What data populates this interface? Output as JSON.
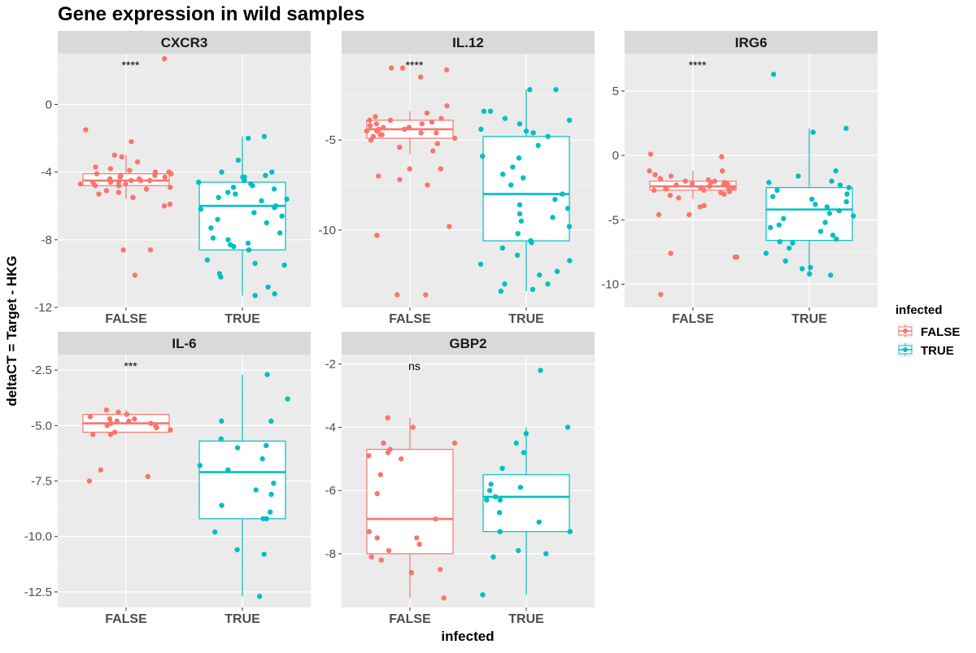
{
  "title": "Gene expression in wild samples",
  "xlabel": "infected",
  "ylabel": "deltaCT = Target - HKG",
  "legend": {
    "title": "infected",
    "position": "right",
    "entries": [
      {
        "label": "FALSE",
        "color": "#F8766D"
      },
      {
        "label": "TRUE",
        "color": "#00BFC4"
      }
    ]
  },
  "colors": {
    "FALSE": "#F8766D",
    "TRUE": "#00BFC4",
    "panel_bg": "#EBEBEB",
    "strip_bg": "#D9D9D9"
  },
  "chart_data": [
    {
      "type": "boxplot",
      "panel": "CXCR3",
      "categories": [
        "FALSE",
        "TRUE"
      ],
      "ylim": [
        -12,
        3.0
      ],
      "yticks": [
        {
          "value": 0,
          "label": "0"
        },
        {
          "value": -4,
          "label": "-4"
        },
        {
          "value": -8,
          "label": "-8"
        },
        {
          "value": -12,
          "label": "-12"
        }
      ],
      "significance": "****",
      "boxes": [
        {
          "group": "FALSE",
          "whisker_low": -5.6,
          "q1": -4.8,
          "median": -4.5,
          "q3": -4.1,
          "whisker_high": -3.0
        },
        {
          "group": "TRUE",
          "whisker_low": -11.3,
          "q1": -8.6,
          "median": -6.0,
          "q3": -4.6,
          "whisker_high": -1.9
        }
      ],
      "points": {
        "FALSE": [
          2.7,
          -1.5,
          -2.2,
          -3.0,
          -3.1,
          -3.4,
          -3.7,
          -3.8,
          -3.9,
          -4.0,
          -4.0,
          -4.1,
          -4.1,
          -4.2,
          -4.2,
          -4.3,
          -4.3,
          -4.4,
          -4.4,
          -4.5,
          -4.5,
          -4.5,
          -4.6,
          -4.6,
          -4.6,
          -4.7,
          -4.7,
          -4.8,
          -4.8,
          -4.9,
          -5.0,
          -5.1,
          -5.2,
          -5.3,
          -5.5,
          -5.9,
          -6.0,
          -8.6,
          -8.6,
          -10.1
        ],
        "TRUE": [
          -1.9,
          -2.0,
          -3.3,
          -4.0,
          -4.0,
          -4.2,
          -4.3,
          -4.3,
          -4.5,
          -4.6,
          -4.7,
          -4.8,
          -4.9,
          -5.0,
          -5.2,
          -5.3,
          -5.5,
          -5.6,
          -5.7,
          -6.0,
          -6.1,
          -6.2,
          -6.4,
          -6.6,
          -6.8,
          -7.0,
          -7.3,
          -7.6,
          -7.9,
          -8.0,
          -8.2,
          -8.3,
          -8.4,
          -8.6,
          -9.2,
          -9.4,
          -9.5,
          -10.0,
          -10.2,
          -10.8,
          -11.2,
          -11.3
        ]
      }
    },
    {
      "type": "boxplot",
      "panel": "IL.12",
      "categories": [
        "FALSE",
        "TRUE"
      ],
      "ylim": [
        -14.3,
        -0.2
      ],
      "yticks": [
        {
          "value": -5,
          "label": "-5"
        },
        {
          "value": -10,
          "label": "-10"
        }
      ],
      "significance": "****",
      "boxes": [
        {
          "group": "FALSE",
          "whisker_low": -5.8,
          "q1": -4.9,
          "median": -4.4,
          "q3": -3.9,
          "whisker_high": -3.4
        },
        {
          "group": "TRUE",
          "whisker_low": -13.4,
          "q1": -10.6,
          "median": -8.0,
          "q3": -4.8,
          "whisker_high": -2.2
        }
      ],
      "points": {
        "FALSE": [
          -1.0,
          -1.0,
          -1.1,
          -1.5,
          -3.1,
          -3.5,
          -3.7,
          -3.8,
          -3.9,
          -3.9,
          -4.0,
          -4.1,
          -4.1,
          -4.2,
          -4.3,
          -4.3,
          -4.4,
          -4.4,
          -4.5,
          -4.5,
          -4.6,
          -4.6,
          -4.7,
          -4.7,
          -4.8,
          -4.9,
          -5.0,
          -5.2,
          -5.4,
          -5.6,
          -6.6,
          -6.6,
          -7.0,
          -7.2,
          -7.5,
          -9.8,
          -10.3,
          -13.6,
          -13.6
        ],
        "TRUE": [
          -2.2,
          -2.2,
          -3.4,
          -3.4,
          -3.8,
          -3.9,
          -4.1,
          -4.4,
          -4.5,
          -4.6,
          -4.8,
          -5.3,
          -5.9,
          -6.0,
          -6.5,
          -6.9,
          -7.1,
          -7.5,
          -8.0,
          -8.3,
          -8.6,
          -8.8,
          -9.1,
          -9.3,
          -9.5,
          -9.8,
          -10.2,
          -10.6,
          -10.7,
          -11.0,
          -11.4,
          -11.7,
          -11.9,
          -12.3,
          -12.5,
          -13.0,
          -13.0,
          -13.3,
          -13.4
        ]
      }
    },
    {
      "type": "boxplot",
      "panel": "IRG6",
      "categories": [
        "FALSE",
        "TRUE"
      ],
      "ylim": [
        -11.8,
        7.9
      ],
      "yticks": [
        {
          "value": 5,
          "label": "5"
        },
        {
          "value": 0,
          "label": "0"
        },
        {
          "value": -5,
          "label": "-5"
        },
        {
          "value": -10,
          "label": "-10"
        }
      ],
      "significance": "****",
      "boxes": [
        {
          "group": "FALSE",
          "whisker_low": -3.4,
          "q1": -2.7,
          "median": -2.4,
          "q3": -2.0,
          "whisker_high": -1.2
        },
        {
          "group": "TRUE",
          "whisker_low": -9.3,
          "q1": -6.6,
          "median": -4.2,
          "q3": -2.5,
          "whisker_high": 2.1
        }
      ],
      "points": {
        "FALSE": [
          -0.1,
          0.1,
          -1.2,
          -1.2,
          -1.5,
          -1.6,
          -1.8,
          -1.9,
          -2.0,
          -2.0,
          -2.1,
          -2.1,
          -2.2,
          -2.2,
          -2.3,
          -2.3,
          -2.4,
          -2.4,
          -2.5,
          -2.5,
          -2.5,
          -2.6,
          -2.6,
          -2.7,
          -2.7,
          -2.8,
          -2.9,
          -3.0,
          -3.1,
          -3.3,
          -3.9,
          -4.0,
          -4.6,
          -4.6,
          -7.6,
          -7.9,
          -7.9,
          -10.8
        ],
        "TRUE": [
          6.3,
          2.1,
          1.8,
          -1.2,
          -1.6,
          -2.0,
          -2.1,
          -2.3,
          -2.5,
          -2.7,
          -3.0,
          -3.2,
          -3.4,
          -3.6,
          -3.8,
          -4.0,
          -4.3,
          -4.5,
          -4.7,
          -4.9,
          -5.2,
          -5.4,
          -5.6,
          -5.9,
          -6.2,
          -6.5,
          -6.7,
          -6.8,
          -7.2,
          -7.6,
          -8.2,
          -8.7,
          -8.8,
          -9.2,
          -9.3
        ]
      }
    },
    {
      "type": "boxplot",
      "panel": "IL-6",
      "categories": [
        "FALSE",
        "TRUE"
      ],
      "ylim": [
        -13.2,
        -1.8
      ],
      "yticks": [
        {
          "value": -2.5,
          "label": "-2.5"
        },
        {
          "value": -5,
          "label": "-5.0"
        },
        {
          "value": -7.5,
          "label": "-7.5"
        },
        {
          "value": -10,
          "label": "-10.0"
        },
        {
          "value": -12.5,
          "label": "-12.5"
        }
      ],
      "significance": "***",
      "boxes": [
        {
          "group": "FALSE",
          "whisker_low": -5.3,
          "q1": -5.3,
          "median": -4.9,
          "q3": -4.5,
          "whisker_high": -4.3
        },
        {
          "group": "TRUE",
          "whisker_low": -12.7,
          "q1": -9.2,
          "median": -7.1,
          "q3": -5.7,
          "whisker_high": -2.7
        }
      ],
      "points": {
        "FALSE": [
          -4.3,
          -4.4,
          -4.5,
          -4.6,
          -4.7,
          -4.7,
          -4.8,
          -4.8,
          -4.9,
          -4.9,
          -5.0,
          -5.0,
          -5.1,
          -5.2,
          -5.3,
          -5.4,
          -5.4,
          -7.0,
          -7.3,
          -7.5
        ],
        "TRUE": [
          -2.7,
          -3.8,
          -4.8,
          -4.8,
          -5.6,
          -5.9,
          -6.0,
          -6.5,
          -6.8,
          -7.0,
          -7.6,
          -7.9,
          -8.1,
          -8.6,
          -8.9,
          -9.2,
          -9.2,
          -9.8,
          -10.6,
          -10.8,
          -12.7
        ]
      }
    },
    {
      "type": "boxplot",
      "panel": "GBP2",
      "categories": [
        "FALSE",
        "TRUE"
      ],
      "ylim": [
        -9.7,
        -1.7
      ],
      "yticks": [
        {
          "value": -2,
          "label": "-2"
        },
        {
          "value": -4,
          "label": "-4"
        },
        {
          "value": -6,
          "label": "-6"
        },
        {
          "value": -8,
          "label": "-8"
        }
      ],
      "significance": "ns",
      "boxes": [
        {
          "group": "FALSE",
          "whisker_low": -9.4,
          "q1": -8.0,
          "median": -6.9,
          "q3": -4.7,
          "whisker_high": -3.7
        },
        {
          "group": "TRUE",
          "whisker_low": -9.3,
          "q1": -7.3,
          "median": -6.2,
          "q3": -5.5,
          "whisker_high": -4.0
        }
      ],
      "points": {
        "FALSE": [
          -3.7,
          -4.0,
          -4.5,
          -4.5,
          -4.7,
          -4.8,
          -4.9,
          -5.0,
          -5.5,
          -6.1,
          -6.9,
          -7.3,
          -7.5,
          -7.5,
          -7.7,
          -7.9,
          -8.1,
          -8.2,
          -8.5,
          -8.6,
          -9.4
        ],
        "TRUE": [
          -2.2,
          -4.0,
          -4.2,
          -4.5,
          -4.8,
          -5.3,
          -5.8,
          -5.9,
          -6.0,
          -6.2,
          -6.3,
          -6.3,
          -6.7,
          -7.0,
          -7.3,
          -7.3,
          -7.9,
          -8.0,
          -8.1,
          -9.3
        ]
      }
    }
  ]
}
